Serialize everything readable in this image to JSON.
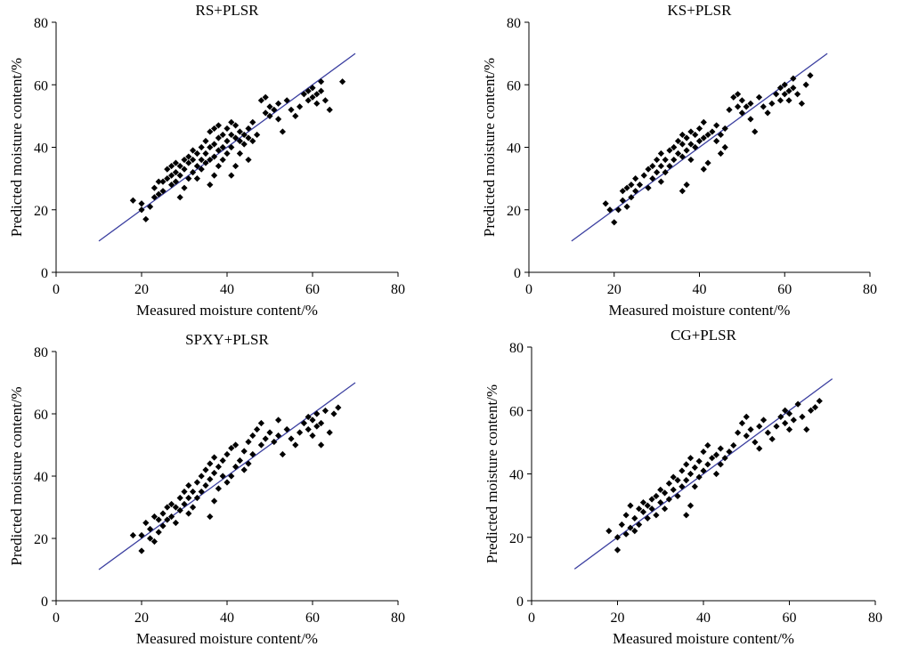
{
  "chart_data": [
    {
      "type": "scatter",
      "title": "RS+PLSR",
      "xlabel": "Measured moisture content/%",
      "ylabel": "Predicted moisture content/%",
      "xlim": [
        0,
        80
      ],
      "ylim": [
        0,
        80
      ],
      "xticks": [
        "0",
        "20",
        "40",
        "60",
        "80"
      ],
      "yticks": [
        "0",
        "20",
        "40",
        "60",
        "80"
      ],
      "line": {
        "x": [
          10,
          70
        ],
        "y": [
          10,
          70
        ],
        "color": "#3b3fa0"
      },
      "grid": false,
      "marker_color": "#000000",
      "points": [
        [
          18,
          23
        ],
        [
          20,
          20
        ],
        [
          20,
          22
        ],
        [
          21,
          17
        ],
        [
          22,
          21
        ],
        [
          23,
          24
        ],
        [
          23,
          27
        ],
        [
          24,
          25
        ],
        [
          24,
          29
        ],
        [
          25,
          26
        ],
        [
          25,
          29
        ],
        [
          26,
          30
        ],
        [
          26,
          33
        ],
        [
          27,
          28
        ],
        [
          27,
          31
        ],
        [
          27,
          34
        ],
        [
          28,
          29
        ],
        [
          28,
          32
        ],
        [
          28,
          35
        ],
        [
          29,
          24
        ],
        [
          29,
          31
        ],
        [
          29,
          34
        ],
        [
          30,
          27
        ],
        [
          30,
          33
        ],
        [
          30,
          36
        ],
        [
          31,
          30
        ],
        [
          31,
          35
        ],
        [
          31,
          37
        ],
        [
          32,
          32
        ],
        [
          32,
          36
        ],
        [
          32,
          39
        ],
        [
          33,
          30
        ],
        [
          33,
          34
        ],
        [
          33,
          38
        ],
        [
          34,
          33
        ],
        [
          34,
          36
        ],
        [
          34,
          40
        ],
        [
          35,
          35
        ],
        [
          35,
          38
        ],
        [
          35,
          42
        ],
        [
          36,
          28
        ],
        [
          36,
          36
        ],
        [
          36,
          40
        ],
        [
          36,
          45
        ],
        [
          37,
          31
        ],
        [
          37,
          37
        ],
        [
          37,
          41
        ],
        [
          37,
          46
        ],
        [
          38,
          34
        ],
        [
          38,
          39
        ],
        [
          38,
          43
        ],
        [
          38,
          47
        ],
        [
          39,
          36
        ],
        [
          39,
          40
        ],
        [
          39,
          44
        ],
        [
          40,
          38
        ],
        [
          40,
          42
        ],
        [
          40,
          46
        ],
        [
          41,
          31
        ],
        [
          41,
          40
        ],
        [
          41,
          44
        ],
        [
          41,
          48
        ],
        [
          42,
          34
        ],
        [
          42,
          43
        ],
        [
          42,
          47
        ],
        [
          43,
          38
        ],
        [
          43,
          42
        ],
        [
          43,
          45
        ],
        [
          44,
          41
        ],
        [
          44,
          44
        ],
        [
          45,
          36
        ],
        [
          45,
          43
        ],
        [
          45,
          46
        ],
        [
          46,
          42
        ],
        [
          46,
          48
        ],
        [
          47,
          44
        ],
        [
          48,
          55
        ],
        [
          49,
          51
        ],
        [
          49,
          56
        ],
        [
          50,
          50
        ],
        [
          50,
          53
        ],
        [
          51,
          52
        ],
        [
          52,
          49
        ],
        [
          52,
          54
        ],
        [
          53,
          45
        ],
        [
          54,
          55
        ],
        [
          55,
          52
        ],
        [
          56,
          50
        ],
        [
          57,
          53
        ],
        [
          58,
          57
        ],
        [
          59,
          55
        ],
        [
          59,
          58
        ],
        [
          60,
          56
        ],
        [
          60,
          59
        ],
        [
          61,
          54
        ],
        [
          61,
          57
        ],
        [
          62,
          58
        ],
        [
          62,
          61
        ],
        [
          63,
          55
        ],
        [
          64,
          52
        ],
        [
          67,
          61
        ]
      ]
    },
    {
      "type": "scatter",
      "title": "KS+PLSR",
      "xlabel": "Measured moisture content/%",
      "ylabel": "Predicted moisture content/%",
      "xlim": [
        0,
        80
      ],
      "ylim": [
        0,
        80
      ],
      "xticks": [
        "0",
        "20",
        "40",
        "60",
        "80"
      ],
      "yticks": [
        "0",
        "20",
        "40",
        "60",
        "80"
      ],
      "line": {
        "x": [
          10,
          70
        ],
        "y": [
          10,
          70
        ],
        "color": "#3b3fa0"
      },
      "grid": false,
      "marker_color": "#000000",
      "points": [
        [
          18,
          22
        ],
        [
          19,
          20
        ],
        [
          20,
          16
        ],
        [
          21,
          20
        ],
        [
          22,
          23
        ],
        [
          22,
          26
        ],
        [
          23,
          21
        ],
        [
          23,
          27
        ],
        [
          24,
          24
        ],
        [
          24,
          28
        ],
        [
          25,
          26
        ],
        [
          25,
          30
        ],
        [
          26,
          28
        ],
        [
          27,
          31
        ],
        [
          28,
          27
        ],
        [
          28,
          33
        ],
        [
          29,
          30
        ],
        [
          29,
          34
        ],
        [
          30,
          32
        ],
        [
          30,
          36
        ],
        [
          31,
          29
        ],
        [
          31,
          34
        ],
        [
          31,
          38
        ],
        [
          32,
          32
        ],
        [
          32,
          36
        ],
        [
          33,
          34
        ],
        [
          33,
          39
        ],
        [
          34,
          36
        ],
        [
          34,
          40
        ],
        [
          35,
          38
        ],
        [
          35,
          42
        ],
        [
          36,
          26
        ],
        [
          36,
          37
        ],
        [
          36,
          41
        ],
        [
          36,
          44
        ],
        [
          37,
          28
        ],
        [
          37,
          39
        ],
        [
          37,
          43
        ],
        [
          38,
          36
        ],
        [
          38,
          41
        ],
        [
          38,
          45
        ],
        [
          39,
          40
        ],
        [
          39,
          44
        ],
        [
          40,
          42
        ],
        [
          40,
          46
        ],
        [
          41,
          33
        ],
        [
          41,
          43
        ],
        [
          41,
          48
        ],
        [
          42,
          35
        ],
        [
          42,
          44
        ],
        [
          43,
          45
        ],
        [
          44,
          42
        ],
        [
          44,
          47
        ],
        [
          45,
          38
        ],
        [
          45,
          44
        ],
        [
          46,
          40
        ],
        [
          46,
          46
        ],
        [
          47,
          52
        ],
        [
          48,
          56
        ],
        [
          49,
          53
        ],
        [
          49,
          57
        ],
        [
          50,
          51
        ],
        [
          50,
          55
        ],
        [
          51,
          53
        ],
        [
          52,
          49
        ],
        [
          52,
          54
        ],
        [
          53,
          45
        ],
        [
          54,
          56
        ],
        [
          55,
          53
        ],
        [
          56,
          51
        ],
        [
          57,
          54
        ],
        [
          58,
          57
        ],
        [
          59,
          55
        ],
        [
          59,
          59
        ],
        [
          60,
          57
        ],
        [
          60,
          60
        ],
        [
          61,
          55
        ],
        [
          61,
          58
        ],
        [
          62,
          59
        ],
        [
          62,
          62
        ],
        [
          63,
          57
        ],
        [
          64,
          54
        ],
        [
          65,
          60
        ],
        [
          66,
          63
        ]
      ]
    },
    {
      "type": "scatter",
      "title": "SPXY+PLSR",
      "xlabel": "Measured moisture content/%",
      "ylabel": "Predicted moisture content/%",
      "xlim": [
        0,
        80
      ],
      "ylim": [
        0,
        80
      ],
      "xticks": [
        "0",
        "20",
        "40",
        "60",
        "80"
      ],
      "yticks": [
        "0",
        "20",
        "40",
        "60",
        "80"
      ],
      "line": {
        "x": [
          10,
          70
        ],
        "y": [
          10,
          70
        ],
        "color": "#3b3fa0"
      },
      "grid": false,
      "marker_color": "#000000",
      "points": [
        [
          18,
          21
        ],
        [
          20,
          16
        ],
        [
          20,
          21
        ],
        [
          21,
          25
        ],
        [
          22,
          20
        ],
        [
          22,
          23
        ],
        [
          23,
          19
        ],
        [
          23,
          27
        ],
        [
          24,
          22
        ],
        [
          24,
          26
        ],
        [
          25,
          24
        ],
        [
          25,
          28
        ],
        [
          26,
          26
        ],
        [
          26,
          30
        ],
        [
          27,
          27
        ],
        [
          27,
          31
        ],
        [
          28,
          25
        ],
        [
          28,
          30
        ],
        [
          29,
          29
        ],
        [
          29,
          33
        ],
        [
          30,
          31
        ],
        [
          30,
          35
        ],
        [
          31,
          28
        ],
        [
          31,
          33
        ],
        [
          31,
          37
        ],
        [
          32,
          30
        ],
        [
          32,
          35
        ],
        [
          33,
          33
        ],
        [
          33,
          38
        ],
        [
          34,
          35
        ],
        [
          34,
          40
        ],
        [
          35,
          37
        ],
        [
          35,
          42
        ],
        [
          36,
          27
        ],
        [
          36,
          39
        ],
        [
          36,
          44
        ],
        [
          37,
          32
        ],
        [
          37,
          41
        ],
        [
          37,
          46
        ],
        [
          38,
          36
        ],
        [
          38,
          43
        ],
        [
          39,
          40
        ],
        [
          39,
          45
        ],
        [
          40,
          38
        ],
        [
          40,
          47
        ],
        [
          41,
          40
        ],
        [
          41,
          49
        ],
        [
          42,
          43
        ],
        [
          42,
          50
        ],
        [
          43,
          45
        ],
        [
          44,
          42
        ],
        [
          44,
          48
        ],
        [
          45,
          44
        ],
        [
          45,
          51
        ],
        [
          46,
          47
        ],
        [
          46,
          53
        ],
        [
          47,
          55
        ],
        [
          48,
          50
        ],
        [
          48,
          57
        ],
        [
          49,
          52
        ],
        [
          50,
          54
        ],
        [
          51,
          51
        ],
        [
          52,
          53
        ],
        [
          52,
          58
        ],
        [
          53,
          47
        ],
        [
          54,
          55
        ],
        [
          55,
          52
        ],
        [
          56,
          50
        ],
        [
          57,
          54
        ],
        [
          58,
          57
        ],
        [
          59,
          55
        ],
        [
          59,
          59
        ],
        [
          60,
          53
        ],
        [
          60,
          58
        ],
        [
          61,
          56
        ],
        [
          61,
          60
        ],
        [
          62,
          50
        ],
        [
          62,
          57
        ],
        [
          63,
          61
        ],
        [
          64,
          54
        ],
        [
          65,
          60
        ],
        [
          66,
          62
        ]
      ]
    },
    {
      "type": "scatter",
      "title": "CG+PLSR",
      "xlabel": "Measured moisture content/%",
      "ylabel": "Predicted moisture content/%",
      "xlim": [
        0,
        80
      ],
      "ylim": [
        0,
        80
      ],
      "xticks": [
        "0",
        "20",
        "40",
        "60",
        "80"
      ],
      "yticks": [
        "0",
        "20",
        "40",
        "60",
        "80"
      ],
      "line": {
        "x": [
          10,
          70
        ],
        "y": [
          10,
          70
        ],
        "color": "#3b3fa0"
      },
      "grid": false,
      "marker_color": "#000000",
      "points": [
        [
          18,
          22
        ],
        [
          20,
          16
        ],
        [
          20,
          20
        ],
        [
          21,
          24
        ],
        [
          22,
          21
        ],
        [
          22,
          27
        ],
        [
          23,
          23
        ],
        [
          23,
          30
        ],
        [
          24,
          22
        ],
        [
          24,
          26
        ],
        [
          25,
          24
        ],
        [
          25,
          29
        ],
        [
          26,
          28
        ],
        [
          26,
          31
        ],
        [
          27,
          26
        ],
        [
          27,
          30
        ],
        [
          28,
          29
        ],
        [
          28,
          32
        ],
        [
          29,
          27
        ],
        [
          29,
          33
        ],
        [
          30,
          31
        ],
        [
          30,
          35
        ],
        [
          31,
          29
        ],
        [
          31,
          34
        ],
        [
          32,
          32
        ],
        [
          32,
          37
        ],
        [
          33,
          35
        ],
        [
          33,
          39
        ],
        [
          34,
          33
        ],
        [
          34,
          38
        ],
        [
          35,
          36
        ],
        [
          35,
          41
        ],
        [
          36,
          27
        ],
        [
          36,
          38
        ],
        [
          36,
          43
        ],
        [
          37,
          30
        ],
        [
          37,
          40
        ],
        [
          37,
          45
        ],
        [
          38,
          36
        ],
        [
          38,
          42
        ],
        [
          39,
          39
        ],
        [
          39,
          44
        ],
        [
          40,
          41
        ],
        [
          40,
          47
        ],
        [
          41,
          43
        ],
        [
          41,
          49
        ],
        [
          42,
          45
        ],
        [
          43,
          40
        ],
        [
          43,
          46
        ],
        [
          44,
          43
        ],
        [
          44,
          48
        ],
        [
          45,
          45
        ],
        [
          46,
          47
        ],
        [
          47,
          49
        ],
        [
          48,
          53
        ],
        [
          49,
          56
        ],
        [
          50,
          52
        ],
        [
          50,
          58
        ],
        [
          51,
          54
        ],
        [
          52,
          50
        ],
        [
          53,
          48
        ],
        [
          53,
          55
        ],
        [
          54,
          57
        ],
        [
          55,
          53
        ],
        [
          56,
          51
        ],
        [
          57,
          55
        ],
        [
          58,
          58
        ],
        [
          59,
          56
        ],
        [
          59,
          60
        ],
        [
          60,
          54
        ],
        [
          60,
          59
        ],
        [
          61,
          57
        ],
        [
          62,
          62
        ],
        [
          63,
          58
        ],
        [
          64,
          54
        ],
        [
          65,
          60
        ],
        [
          66,
          61
        ],
        [
          67,
          63
        ]
      ]
    }
  ]
}
